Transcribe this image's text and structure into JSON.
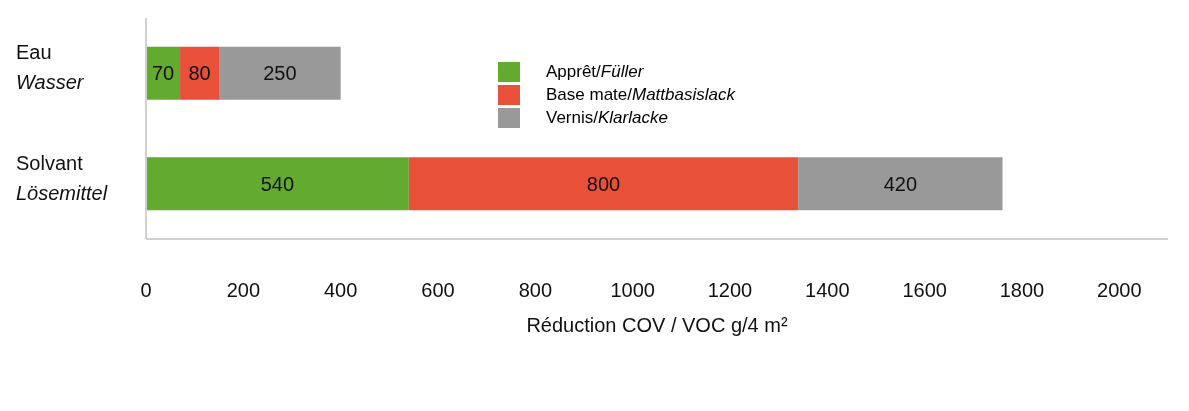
{
  "chart_data": {
    "type": "bar",
    "orientation": "horizontal",
    "stacked": true,
    "data_labels": true,
    "legend": "top",
    "xlabel": "Réduction COV / VOC g/4 m²",
    "categories": [
      "Eau\nWasser",
      "Solvant\nLösemittel"
    ],
    "xlim": [
      0,
      2100
    ],
    "xticks": [
      0,
      200,
      400,
      600,
      800,
      1000,
      1200,
      1400,
      1600,
      1800,
      2000
    ],
    "series": [
      {
        "name": "Apprêt/Füller",
        "color": "#62ab2f",
        "values": [
          70,
          540
        ]
      },
      {
        "name": "Base mate/Mattbasislack",
        "color": "#e8503a",
        "values": [
          80,
          800
        ]
      },
      {
        "name": "Vernis/Klarlacke",
        "color": "#999999",
        "values": [
          250,
          420
        ]
      }
    ]
  }
}
